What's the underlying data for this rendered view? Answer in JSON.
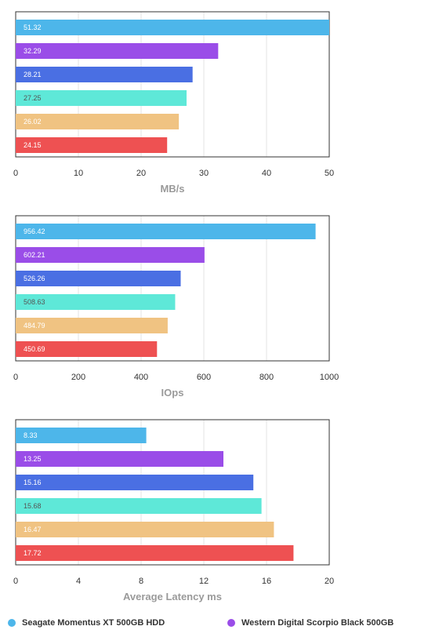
{
  "series_colors": [
    "#4db6ea",
    "#9a4de8",
    "#4a6fe3",
    "#5ee8d8",
    "#f0c382",
    "#ee5152"
  ],
  "legend": [
    {
      "name": "Seagate Momentus XT 500GB HDD",
      "color": "#4db6ea"
    },
    {
      "name": "Western Digital Scorpio Black 500GB",
      "color": "#9a4de8"
    }
  ],
  "chart_data": [
    {
      "type": "bar",
      "orientation": "horizontal",
      "values": [
        51.32,
        32.29,
        28.21,
        27.25,
        26.02,
        24.15
      ],
      "labels": [
        "51.32",
        "32.29",
        "28.21",
        "27.25",
        "26.02",
        "24.15"
      ],
      "xlim": [
        0,
        50
      ],
      "ticks": [
        0,
        10,
        20,
        30,
        40,
        50
      ],
      "xlabel": "MB/s",
      "grid": true
    },
    {
      "type": "bar",
      "orientation": "horizontal",
      "values": [
        956.42,
        602.21,
        526.26,
        508.63,
        484.79,
        450.69
      ],
      "labels": [
        "956.42",
        "602.21",
        "526.26",
        "508.63",
        "484.79",
        "450.69"
      ],
      "xlim": [
        0,
        1000
      ],
      "ticks": [
        0,
        200,
        400,
        600,
        800,
        1000
      ],
      "xlabel": "IOps",
      "grid": true
    },
    {
      "type": "bar",
      "orientation": "horizontal",
      "values": [
        8.33,
        13.25,
        15.16,
        15.68,
        16.47,
        17.72
      ],
      "labels": [
        "8.33",
        "13.25",
        "15.16",
        "15.68",
        "16.47",
        "17.72"
      ],
      "xlim": [
        0,
        20
      ],
      "ticks": [
        0,
        4,
        8,
        12,
        16,
        20
      ],
      "xlabel": "Average Latency ms",
      "grid": true
    }
  ]
}
